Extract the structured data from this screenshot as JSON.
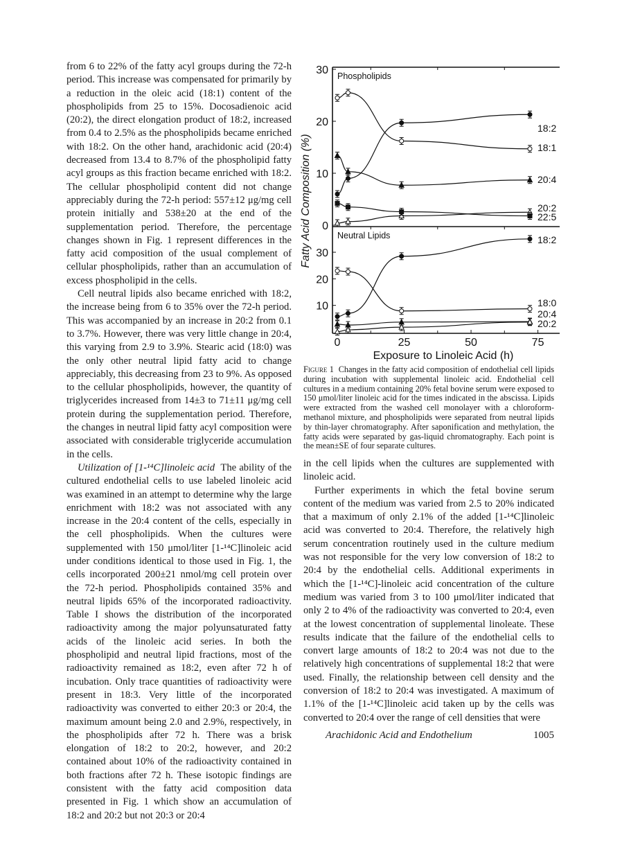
{
  "left_column": {
    "paragraphs": [
      "from 6 to 22% of the fatty acyl groups during the 72-h period. This increase was compensated for primarily by a reduction in the oleic acid (18:1) content of the phospholipids from 25 to 15%. Docosadienoic acid (20:2), the direct elongation product of 18:2, increased from 0.4 to 2.5% as the phospholipids became enriched with 18:2. On the other hand, arachidonic acid (20:4) decreased from 13.4 to 8.7% of the phospholipid fatty acyl groups as this fraction became enriched with 18:2. The cellular phospholipid content did not change appreciably during the 72-h period: 557±12 μg/mg cell protein initially and 538±20 at the end of the supplementation period. Therefore, the percentage changes shown in Fig. 1 represent differences in the fatty acid composition of the usual complement of cellular phospholipids, rather than an accumulation of excess phospholipid in the cells.",
      "Cell neutral lipids also became enriched with 18:2, the increase being from 6 to 35% over the 72-h period. This was accompanied by an increase in 20:2 from 0.1 to 3.7%. However, there was very little change in 20:4, this varying from 2.9 to 3.9%. Stearic acid (18:0) was the only other neutral lipid fatty acid to change appreciably, this decreasing from 23 to 9%. As opposed to the cellular phospholipids, however, the quantity of triglycerides increased from 14±3 to 71±11 μg/mg cell protein during the supplementation period. Therefore, the changes in neutral lipid fatty acyl composition were associated with considerable triglyceride accumulation in the cells."
    ],
    "section_heading": "Utilization of [1-¹⁴C]linoleic acid",
    "section_text": "The ability of the cultured endothelial cells to use labeled linoleic acid was examined in an attempt to determine why the large enrichment with 18:2 was not associated with any increase in the 20:4 content of the cells, especially in the cell phospholipids. When the cultures were supplemented with 150 μmol/liter [1-¹⁴C]linoleic acid under conditions identical to those used in Fig. 1, the cells incorporated 200±21 nmol/mg cell protein over the 72-h period. Phospholipids contained 35% and neutral lipids 65% of the incorporated radioactivity. Table I shows the distribution of the incorporated radioactivity among the major polyunsaturated fatty acids of the linoleic acid series. In both the phospholipid and neutral lipid fractions, most of the radioactivity remained as 18:2, even after 72 h of incubation. Only trace quantities of radioactivity were present in 18:3. Very little of the incorporated radioactivity was converted to either 20:3 or 20:4, the maximum amount being 2.0 and 2.9%, respectively, in the phospholipids after 72 h. There was a brisk elongation of 18:2 to 20:2, however, and 20:2 contained about 10% of the radioactivity contained in both fractions after 72 h. These isotopic findings are consistent with the fatty acid composition data presented in Fig. 1 which show an accumulation of 18:2 and 20:2 but not 20:3 or 20:4"
  },
  "caption": {
    "label": "Figure 1",
    "text": "Changes in the fatty acid composition of endothelial cell lipids during incubation with supplemental linoleic acid. Endothelial cell cultures in a medium containing 20% fetal bovine serum were exposed to 150 μmol/liter linoleic acid for the times indicated in the abscissa. Lipids were extracted from the washed cell monolayer with a chloroform-methanol mixture, and phospholipids were separated from neutral lipids by thin-layer chromatography. After saponification and methylation, the fatty acids were separated by gas-liquid chromatography. Each point is the mean±SE of four separate cultures."
  },
  "right_column": {
    "paragraphs": [
      "in the cell lipids when the cultures are supplemented with linoleic acid.",
      "Further experiments in which the fetal bovine serum content of the medium was varied from 2.5 to 20% indicated that a maximum of only 2.1% of the added [1-¹⁴C]linoleic acid was converted to 20:4. Therefore, the relatively high serum concentration routinely used in the culture medium was not responsible for the very low conversion of 18:2 to 20:4 by the endothelial cells. Additional experiments in which the [1-¹⁴C]-linoleic acid concentration of the culture medium was varied from 3 to 100 μmol/liter indicated that only 2 to 4% of the radioactivity was converted to 20:4, even at the lowest concentration of supplemental linoleate. These results indicate that the failure of the endothelial cells to convert large amounts of 18:2 to 20:4 was not due to the relatively high concentrations of supplemental 18:2 that were used. Finally, the relationship between cell density and the conversion of 18:2 to 20:4 was investigated. A maximum of 1.1% of the [1-¹⁴C]linoleic acid taken up by the cells was converted to 20:4 over the range of cell densities that were"
    ]
  },
  "footer": {
    "title": "Arachidonic Acid and Endothelium",
    "page": "1005"
  },
  "chart_data": [
    {
      "type": "line",
      "title": "Phospholipids",
      "xlabel": "Exposure to Linoleic Acid (h)",
      "ylabel": "Fatty Acid Composition (%)",
      "x": [
        0,
        4,
        24,
        72
      ],
      "xlim": [
        0,
        80
      ],
      "ylim": [
        0,
        30
      ],
      "yticks": [
        "0",
        "10",
        "20",
        "30"
      ],
      "series": [
        {
          "name": "18:2",
          "marker": "filled-circle",
          "values": [
            6.0,
            9.0,
            19.7,
            21.3
          ]
        },
        {
          "name": "18:1",
          "marker": "open-circle",
          "values": [
            24.5,
            25.5,
            16.2,
            14.7
          ]
        },
        {
          "name": "20:4",
          "marker": "filled-triangle",
          "values": [
            13.4,
            10.3,
            7.7,
            8.7
          ]
        },
        {
          "name": "20:2",
          "marker": "open-triangle",
          "values": [
            0.4,
            0.7,
            1.8,
            2.5
          ]
        },
        {
          "name": "22:5",
          "marker": "filled-square",
          "values": [
            4.2,
            3.5,
            2.6,
            1.8
          ]
        }
      ]
    },
    {
      "type": "line",
      "title": "Neutral Lipids",
      "xlabel": "Exposure to Linoleic Acid (h)",
      "ylabel": "Fatty Acid Composition (%)",
      "x": [
        0,
        4,
        24,
        72
      ],
      "xlim": [
        0,
        80
      ],
      "ylim": [
        0,
        36
      ],
      "xticks": [
        "0",
        "25",
        "50",
        "75"
      ],
      "yticks": [
        "10",
        "20",
        "30"
      ],
      "series": [
        {
          "name": "18:2",
          "marker": "filled-circle",
          "values": [
            5.8,
            7.0,
            28.5,
            35.0
          ]
        },
        {
          "name": "18:0",
          "marker": "open-circle",
          "values": [
            23.0,
            22.7,
            7.9,
            8.7
          ]
        },
        {
          "name": "20:4",
          "marker": "filled-triangle",
          "values": [
            2.9,
            2.6,
            3.7,
            3.9
          ]
        },
        {
          "name": "20:2",
          "marker": "open-triangle",
          "values": [
            0.1,
            0.8,
            1.8,
            3.7
          ]
        }
      ]
    }
  ]
}
